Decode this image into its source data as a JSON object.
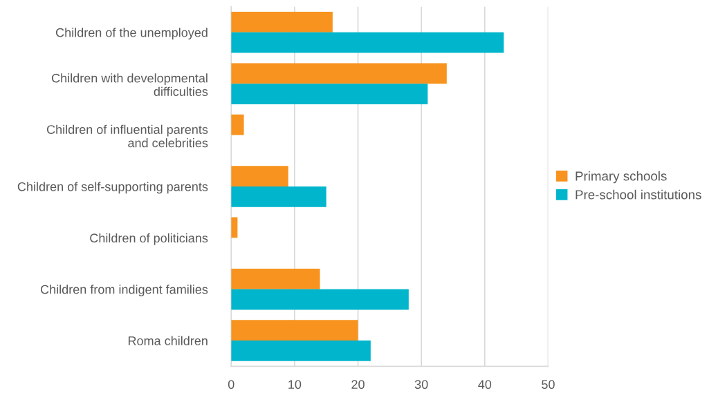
{
  "chart_data": {
    "type": "bar",
    "orientation": "horizontal",
    "categories": [
      "Children of the unemployed",
      "Children with developmental\ndifficulties",
      "Children of influential parents\nand celebrities",
      "Children of self-supporting parents",
      "Children of politicians",
      "Children from indigent families",
      "Roma children"
    ],
    "series": [
      {
        "name": "Primary schools",
        "color": "#f7931e",
        "values": [
          16,
          34,
          2,
          9,
          1,
          14,
          20
        ]
      },
      {
        "name": "Pre-school institutions",
        "color": "#00b5cc",
        "values": [
          43,
          31,
          0,
          15,
          0,
          28,
          22
        ]
      }
    ],
    "xlim": [
      0,
      50
    ],
    "xticks": [
      0,
      10,
      20,
      30,
      40,
      50
    ],
    "grid": "x",
    "legend": "right"
  }
}
